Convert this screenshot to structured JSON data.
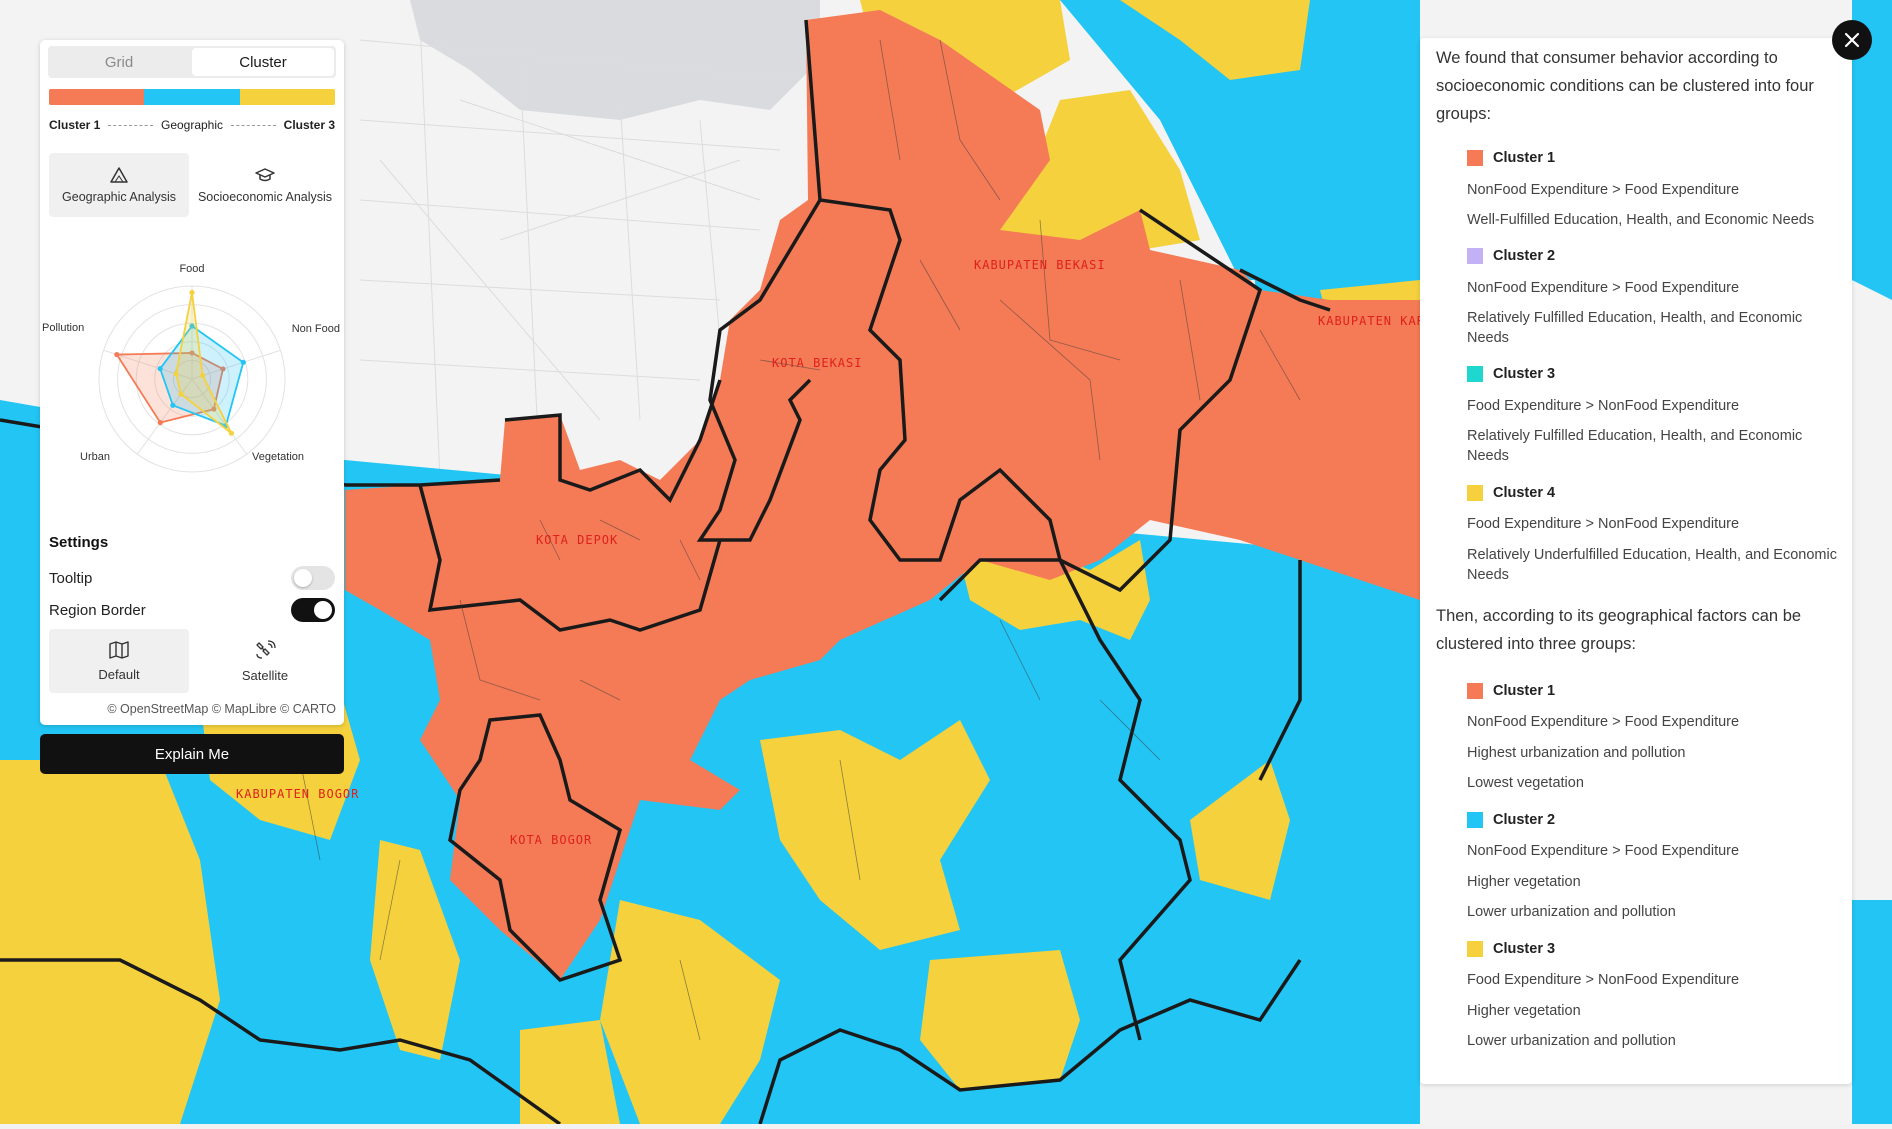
{
  "map": {
    "labels": {
      "kab_bekasi": "KABUPATEN BEKASI",
      "kota_bekasi": "KOTA BEKASI",
      "kab_karawang": "KABUPATEN KARA",
      "kota_depok": "KOTA DEPOK",
      "kab_bogor": "KABUPATEN BOGOR",
      "kota_bogor": "KOTA BOGOR"
    }
  },
  "panel": {
    "tabs": [
      {
        "label": "Grid"
      },
      {
        "label": "Cluster"
      }
    ],
    "active_tab": "Cluster",
    "gradient_colors": [
      "#f47b56",
      "#22c5f4",
      "#f4d13d"
    ],
    "gradient_labels": {
      "left": "Cluster 1",
      "middle": "Geographic",
      "right": "Cluster 3"
    },
    "analysis_buttons": [
      {
        "label": "Geographic Analysis",
        "icon": "triangle-icon"
      },
      {
        "label": "Socioeconomic Analysis",
        "icon": "graduation-cap-icon"
      }
    ],
    "radar": {
      "axes": [
        "Food",
        "Non Food",
        "Vegetation",
        "Urban",
        "Pollution"
      ],
      "series_colors": [
        "#f47b56",
        "#22c5f4",
        "#f4d13d"
      ],
      "series_values": [
        [
          0.28,
          0.35,
          0.4,
          0.58,
          0.85
        ],
        [
          0.57,
          0.58,
          0.62,
          0.35,
          0.36
        ],
        [
          0.93,
          0.12,
          0.72,
          0.2,
          0.18
        ]
      ]
    },
    "settings_title": "Settings",
    "settings": [
      {
        "label": "Tooltip",
        "enabled": false
      },
      {
        "label": "Region Border",
        "enabled": true
      }
    ],
    "basemaps": [
      {
        "label": "Default",
        "icon": "map-icon"
      },
      {
        "label": "Satellite",
        "icon": "satellite-icon"
      }
    ],
    "attribution": "© OpenStreetMap © MapLibre © CARTO",
    "explain_label": "Explain Me"
  },
  "info": {
    "intro": "We found that consumer behavior according to socioeconomic conditions can be clustered into four groups:",
    "socio_clusters": [
      {
        "name": "Cluster 1",
        "color": "#f47b56",
        "lines": [
          "NonFood Expenditure > Food Expenditure",
          "Well-Fulfilled Education, Health, and Economic Needs"
        ]
      },
      {
        "name": "Cluster 2",
        "color": "#c3b1f5",
        "lines": [
          "NonFood Expenditure > Food Expenditure",
          "Relatively Fulfilled Education, Health, and Economic Needs"
        ]
      },
      {
        "name": "Cluster 3",
        "color": "#1ed8d0",
        "lines": [
          "Food Expenditure > NonFood Expenditure",
          "Relatively Fulfilled Education, Health, and Economic Needs"
        ]
      },
      {
        "name": "Cluster 4",
        "color": "#f4d13d",
        "lines": [
          "Food Expenditure > NonFood Expenditure",
          "Relatively Underfulfilled Education, Health, and Economic Needs"
        ]
      }
    ],
    "geo_intro": "Then, according to its geographical factors can be clustered into three groups:",
    "geo_clusters": [
      {
        "name": "Cluster 1",
        "color": "#f47b56",
        "lines": [
          "NonFood Expenditure > Food Expenditure",
          "Highest urbanization and pollution",
          "Lowest vegetation"
        ]
      },
      {
        "name": "Cluster 2",
        "color": "#22c5f4",
        "lines": [
          "NonFood Expenditure > Food Expenditure",
          "Higher vegetation",
          "Lower urbanization and pollution"
        ]
      },
      {
        "name": "Cluster 3",
        "color": "#f4d13d",
        "lines": [
          "Food Expenditure > NonFood Expenditure",
          "Higher vegetation",
          "Lower urbanization and pollution"
        ]
      }
    ]
  }
}
